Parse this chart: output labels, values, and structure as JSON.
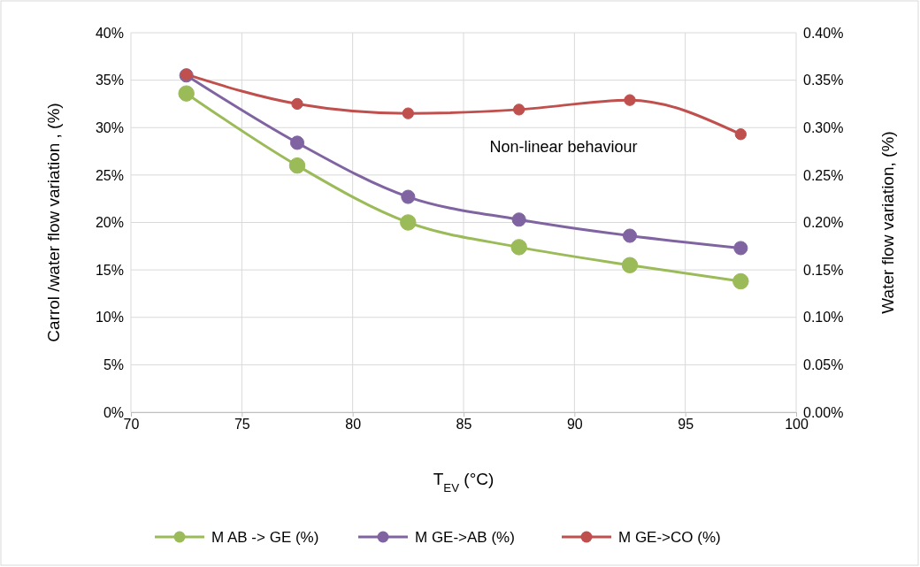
{
  "chart_data": {
    "type": "line",
    "xlabel": "T$_{EV}$ (°C)",
    "ylabel": "Carrol /water flow variation , (%)",
    "y2label": "Water flow variation, (%)",
    "annotations": [
      "Non-linear behaviour"
    ],
    "x": [
      72.5,
      77.5,
      82.5,
      87.5,
      92.5,
      97.5
    ],
    "series": [
      {
        "name": "M AB -> GE (%)",
        "color": "#9bbb59",
        "values": [
          33.6,
          26.0,
          20.0,
          17.4,
          15.5,
          13.8
        ]
      },
      {
        "name": "M GE->AB (%)",
        "color": "#8064a2",
        "values": [
          35.5,
          28.4,
          22.7,
          20.3,
          18.6,
          17.3
        ]
      },
      {
        "name": "M GE->CO (%)",
        "color": "#c0504d",
        "axis": "y2",
        "values": [
          0.356,
          0.325,
          0.315,
          0.319,
          0.329,
          0.293
        ]
      }
    ],
    "xlim": [
      70,
      100
    ],
    "xticks": [
      70,
      75,
      80,
      85,
      90,
      95,
      100
    ],
    "ylim": [
      0,
      40
    ],
    "yticks": [
      {
        "value": 0,
        "label": "0%"
      },
      {
        "value": 5,
        "label": "5%"
      },
      {
        "value": 10,
        "label": "10%"
      },
      {
        "value": 15,
        "label": "15%"
      },
      {
        "value": 20,
        "label": "20%"
      },
      {
        "value": 25,
        "label": "25%"
      },
      {
        "value": 30,
        "label": "30%"
      },
      {
        "value": 35,
        "label": "35%"
      },
      {
        "value": 40,
        "label": "40%"
      }
    ],
    "y2lim": [
      0,
      0.4
    ],
    "y2ticks": [
      {
        "value": 0,
        "label": "0.00%"
      },
      {
        "value": 0.05,
        "label": "0.05%"
      },
      {
        "value": 0.1,
        "label": "0.10%"
      },
      {
        "value": 0.15,
        "label": "0.15%"
      },
      {
        "value": 0.2,
        "label": "0.20%"
      },
      {
        "value": 0.25,
        "label": "0.25%"
      },
      {
        "value": 0.3,
        "label": "0.30%"
      },
      {
        "value": 0.35,
        "label": "0.35%"
      },
      {
        "value": 0.4,
        "label": "0.40%"
      }
    ],
    "grid": true,
    "legend": "bottom",
    "marker": "circle",
    "line_style": "solid"
  }
}
